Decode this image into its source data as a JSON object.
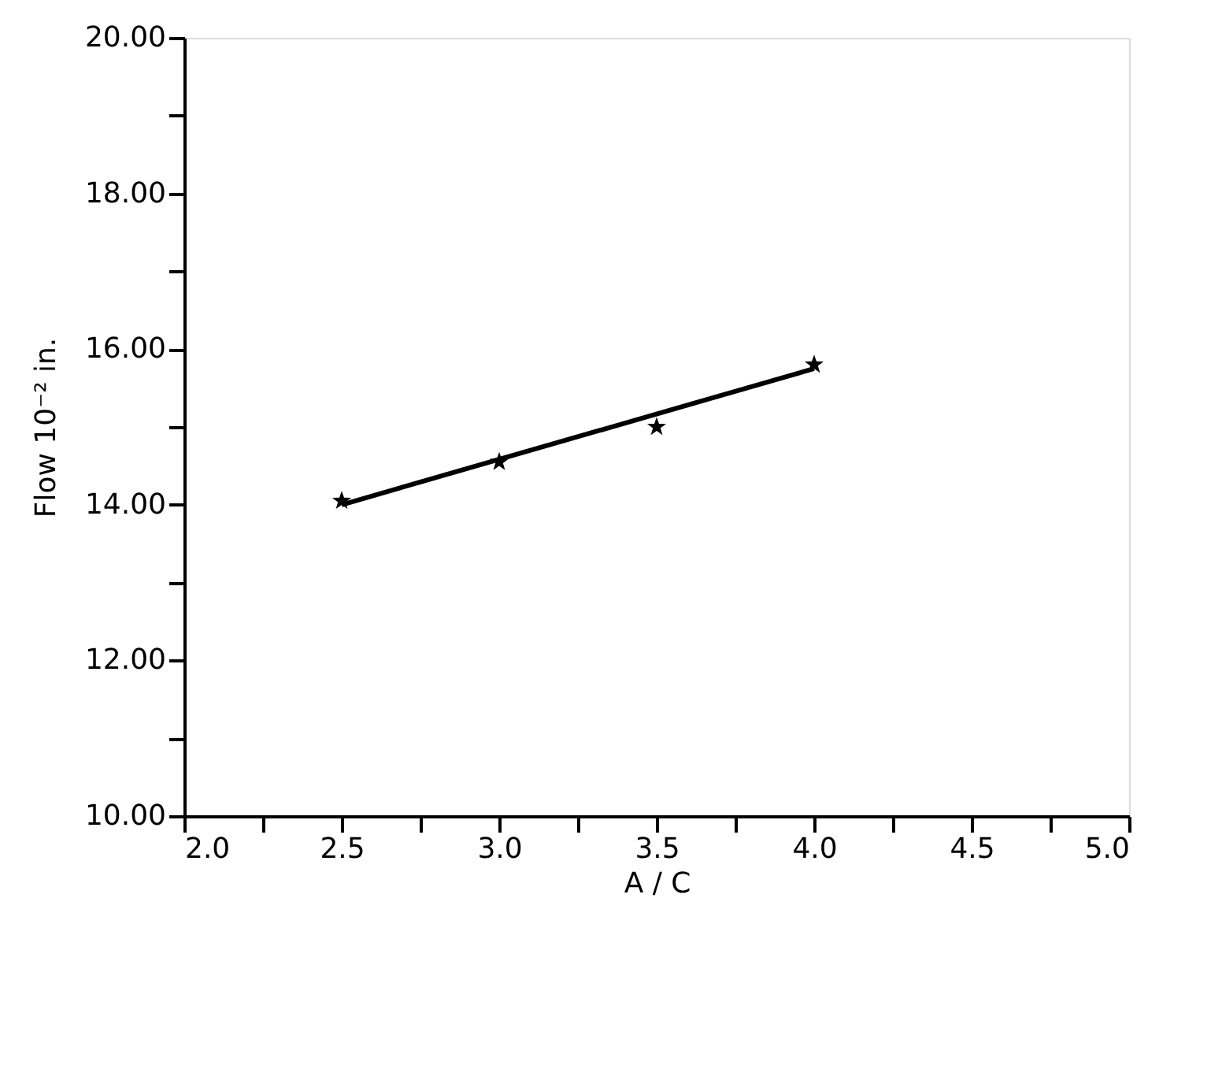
{
  "chart_data": {
    "type": "scatter",
    "xlabel": "A / C",
    "ylabel": "Flow 10⁻² in.",
    "xlim": [
      2.0,
      5.0
    ],
    "ylim": [
      10.0,
      20.0
    ],
    "xticks": [
      {
        "value": 2.0,
        "label": "2.0"
      },
      {
        "value": 2.25,
        "label": null
      },
      {
        "value": 2.5,
        "label": "2.5"
      },
      {
        "value": 2.75,
        "label": null
      },
      {
        "value": 3.0,
        "label": "3.0"
      },
      {
        "value": 3.25,
        "label": null
      },
      {
        "value": 3.5,
        "label": "3.5"
      },
      {
        "value": 3.75,
        "label": null
      },
      {
        "value": 4.0,
        "label": "4.0"
      },
      {
        "value": 4.25,
        "label": null
      },
      {
        "value": 4.5,
        "label": "4.5"
      },
      {
        "value": 4.75,
        "label": null
      },
      {
        "value": 5.0,
        "label": "5.0"
      }
    ],
    "yticks": [
      {
        "value": 10,
        "label": "10.00"
      },
      {
        "value": 11,
        "label": null
      },
      {
        "value": 12,
        "label": "12.00"
      },
      {
        "value": 13,
        "label": null
      },
      {
        "value": 14,
        "label": "14.00"
      },
      {
        "value": 15,
        "label": null
      },
      {
        "value": 16,
        "label": "16.00"
      },
      {
        "value": 17,
        "label": null
      },
      {
        "value": 18,
        "label": "18.00"
      },
      {
        "value": 19,
        "label": null
      },
      {
        "value": 20,
        "label": "20.00"
      }
    ],
    "grid": false,
    "series": [
      {
        "color": "#000000",
        "marker": "star",
        "x": [
          2.5,
          3.0,
          3.5,
          4.0
        ],
        "values": [
          14.05,
          14.55,
          15.0,
          15.8
        ]
      },
      {
        "type": "line",
        "color": "#000000",
        "line_style": "solid",
        "x": [
          2.5,
          4.0
        ],
        "values": [
          14.0,
          15.75
        ]
      }
    ]
  }
}
